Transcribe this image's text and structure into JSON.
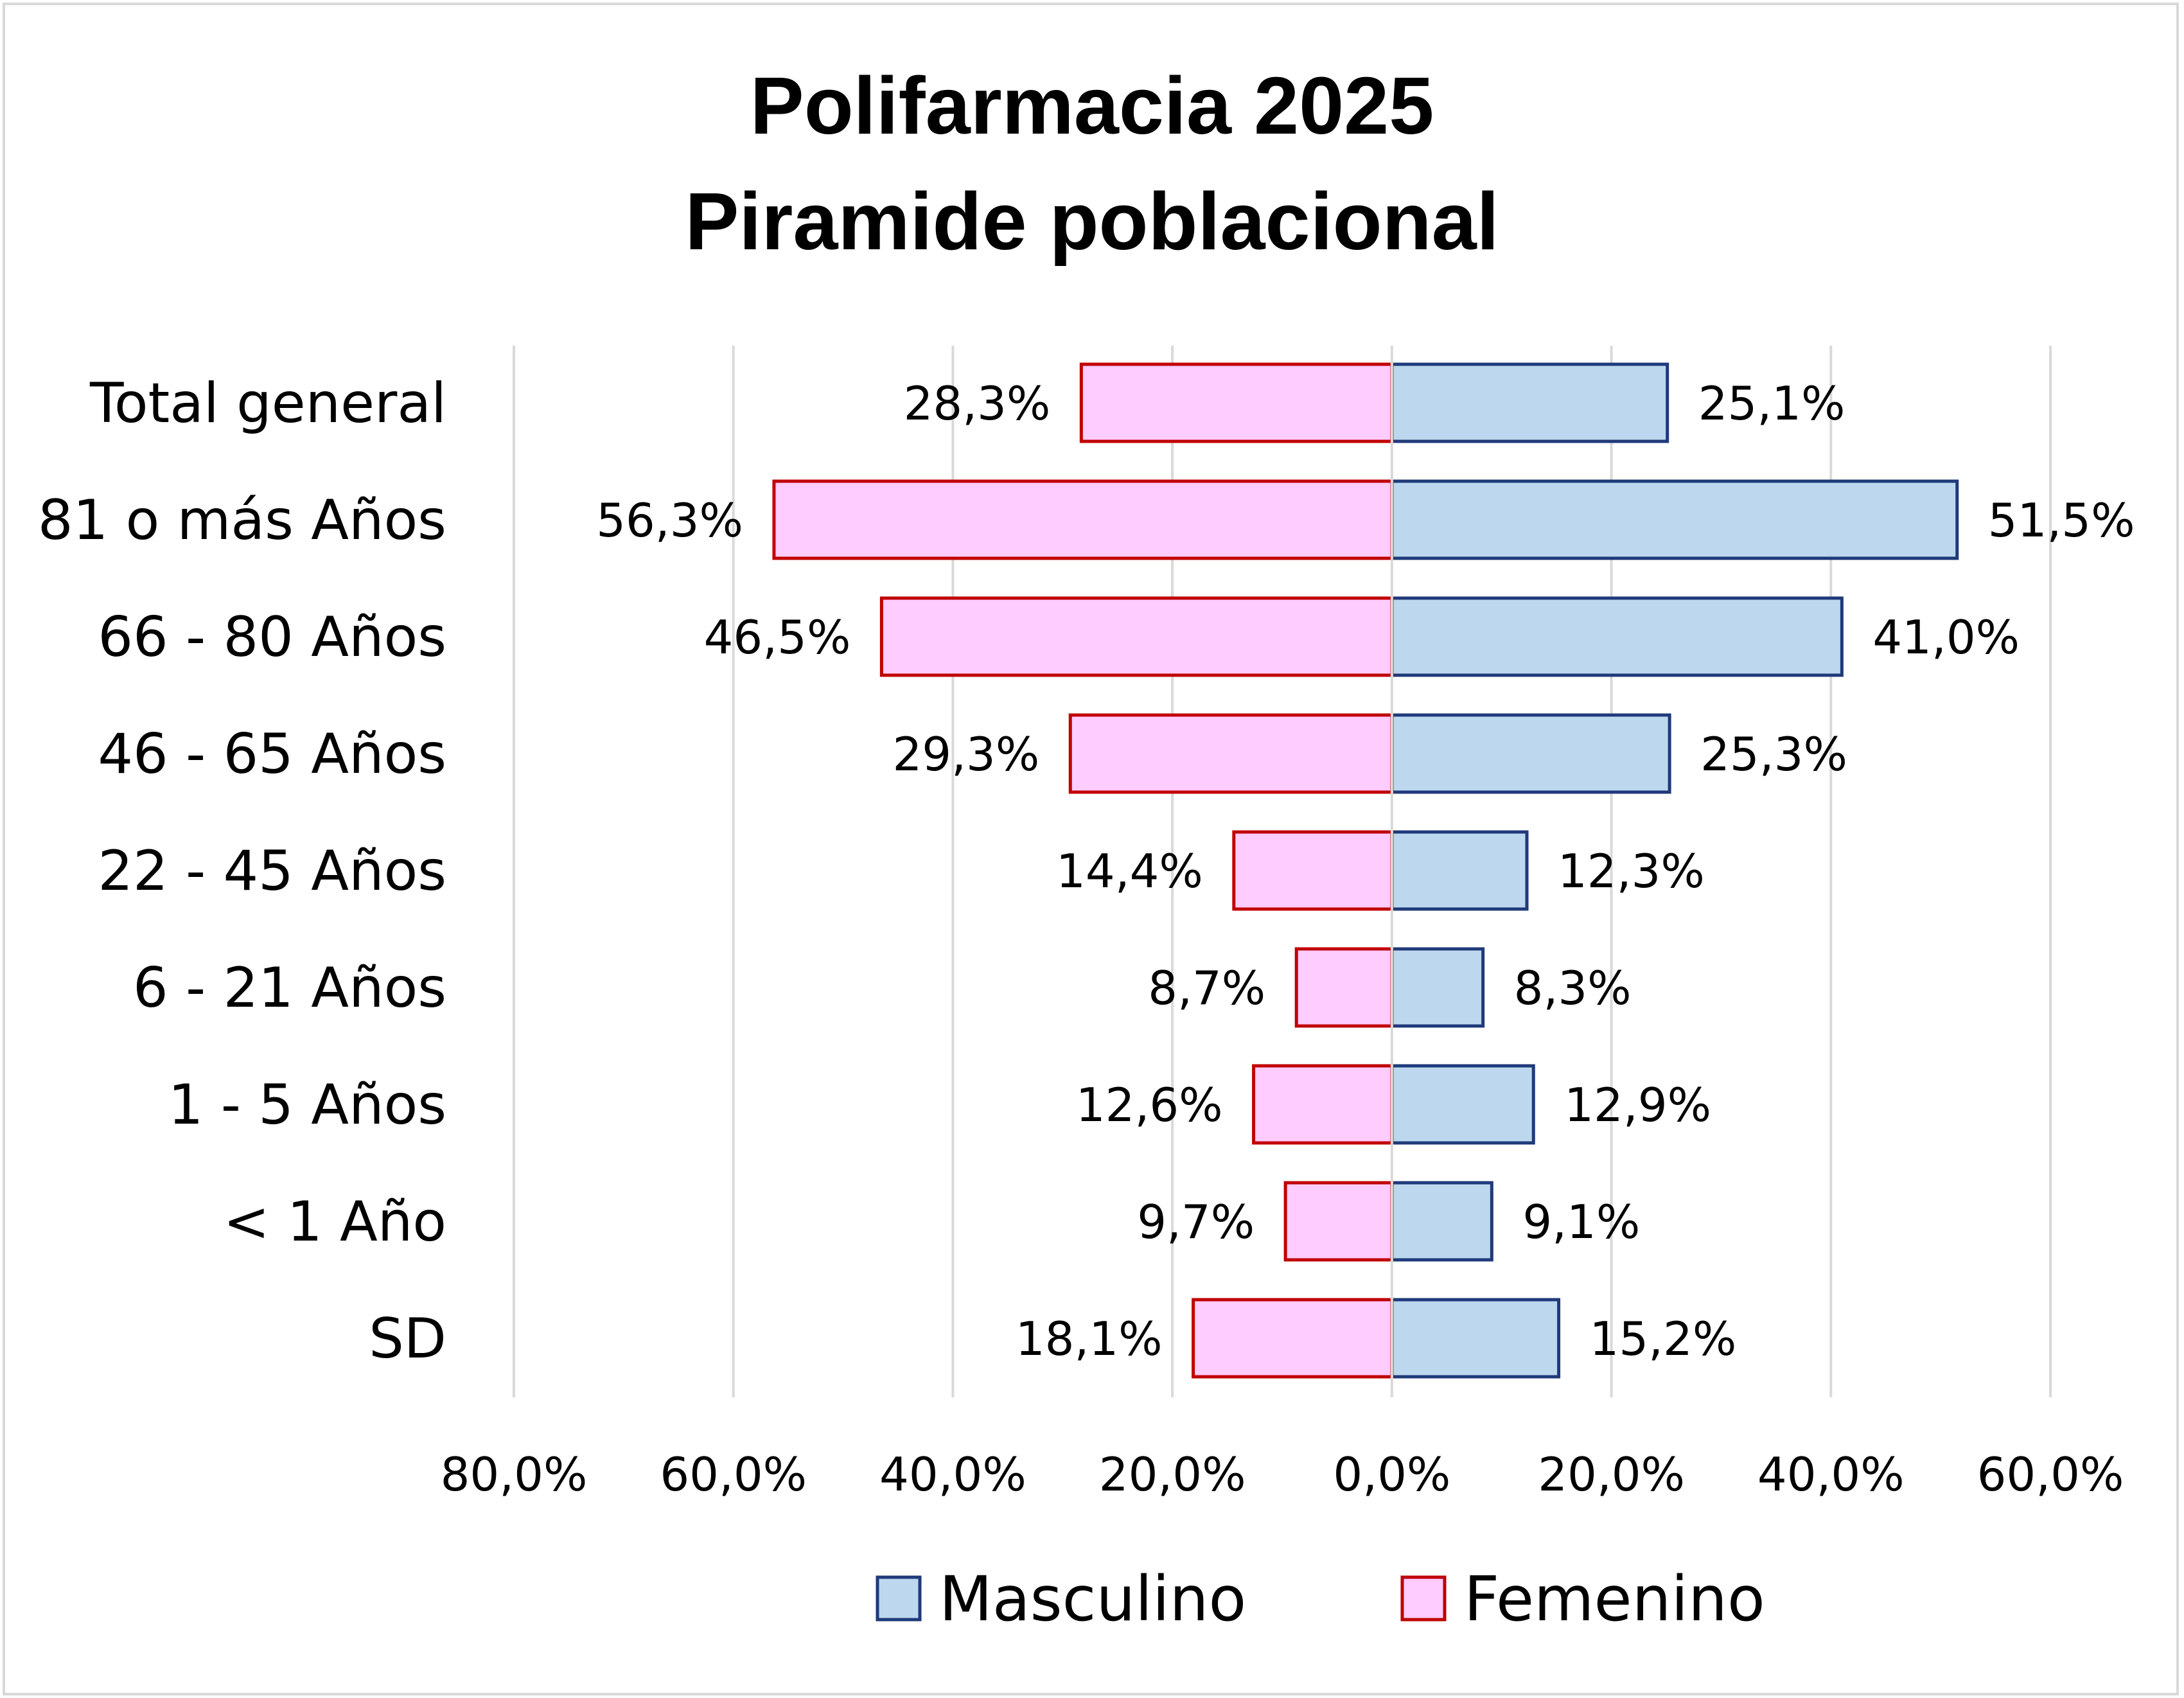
{
  "chart_data": {
    "type": "bar",
    "orientation": "horizontal-diverging",
    "title_lines": [
      "Polifarmacia 2025",
      "Piramide poblacional"
    ],
    "categories": [
      "Total general",
      "81 o más Años",
      "66 - 80 Años",
      "46 - 65 Años",
      "22 - 45 Años",
      "6 - 21 Años",
      "1 - 5 Años",
      "< 1 Año",
      "SD"
    ],
    "series": [
      {
        "name": "Masculino",
        "side": "right",
        "color": "#bdd7ee",
        "border_color": "#1f3a7a",
        "values": [
          25.1,
          51.5,
          41.0,
          25.3,
          12.3,
          8.3,
          12.9,
          9.1,
          15.2
        ],
        "labels": [
          "25,1%",
          "51,5%",
          "41,0%",
          "25,3%",
          "12,3%",
          "8,3%",
          "12,9%",
          "9,1%",
          "15,2%"
        ]
      },
      {
        "name": "Femenino",
        "side": "left",
        "color": "#ffccff",
        "border_color": "#c00000",
        "values": [
          28.3,
          56.3,
          46.5,
          29.3,
          14.4,
          8.7,
          12.6,
          9.7,
          18.1
        ],
        "labels": [
          "28,3%",
          "56,3%",
          "46,5%",
          "29,3%",
          "14,4%",
          "8,7%",
          "12,6%",
          "9,7%",
          "18,1%"
        ]
      }
    ],
    "x_range": [
      -80,
      60
    ],
    "x_ticks": [
      -80,
      -60,
      -40,
      -20,
      0,
      20,
      40,
      60
    ],
    "x_tick_labels": [
      "80,0%",
      "60,0%",
      "40,0%",
      "20,0%",
      "0,0%",
      "20,0%",
      "40,0%",
      "60,0%"
    ],
    "gridlines": true,
    "gridline_color": "#d9d9d9",
    "legend": {
      "position": "bottom",
      "entries": [
        "Masculino",
        "Femenino"
      ]
    }
  }
}
